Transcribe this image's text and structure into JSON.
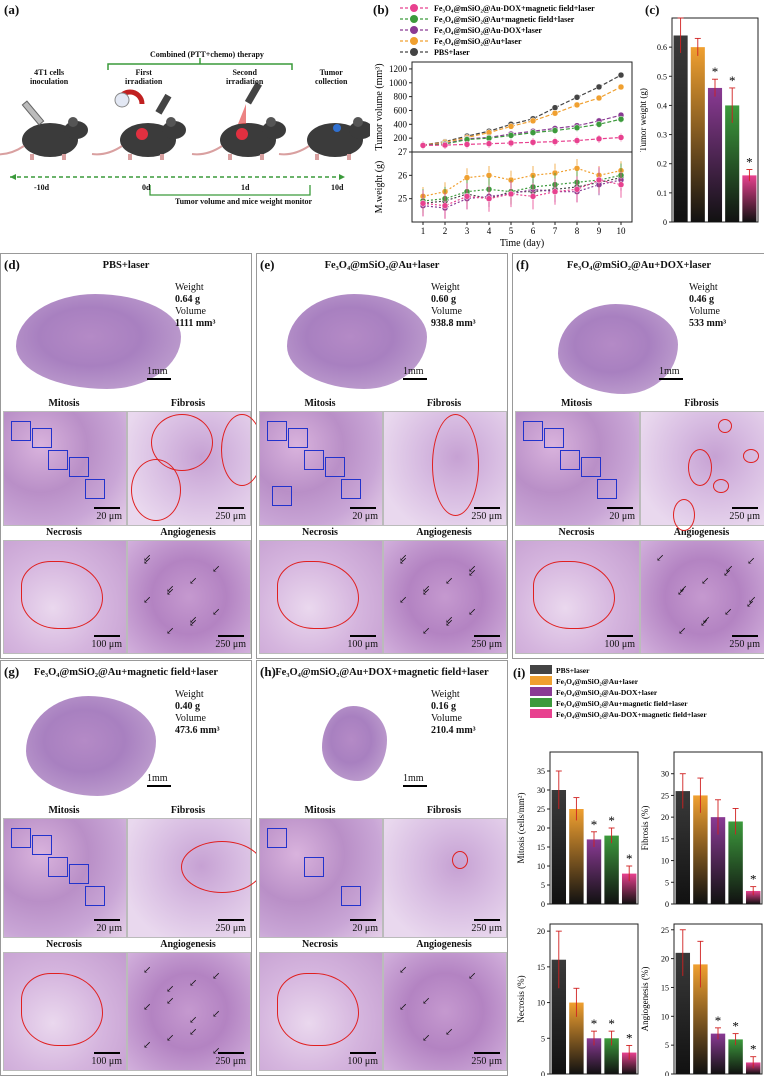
{
  "panel_labels": {
    "a": "(a)",
    "b": "(b)",
    "c": "(c)",
    "d": "(d)",
    "e": "(e)",
    "f": "(f)",
    "g": "(g)",
    "h": "(h)",
    "i": "(i)"
  },
  "schematic": {
    "combined_therapy": "Combined (PTT+chemo) therapy",
    "steps": [
      "4T1 cells\ninoculation",
      "First\nirradiation",
      "Second\nirradiation",
      "Tumor\ncollection"
    ],
    "timeline": [
      "-10d",
      "0d",
      "1d",
      "10d"
    ],
    "monitor": "Tumor volume and mice weight monitor"
  },
  "legend_b": [
    {
      "label": "Fe3O4@mSiO2@Au-DOX+magnetic field+laser",
      "color": "#e8418f"
    },
    {
      "label": "Fe3O4@mSiO2@Au+magnetic field+laser",
      "color": "#3c9a3c"
    },
    {
      "label": "Fe3O4@mSiO2@Au-DOX+laser",
      "color": "#8a3a94"
    },
    {
      "label": "Fe3O4@mSiO2@Au+laser",
      "color": "#f0a030"
    },
    {
      "label": "PBS+laser",
      "color": "#444444"
    }
  ],
  "legend_i": [
    {
      "label": "PBS+laser",
      "color": "#444444"
    },
    {
      "label": "Fe3O4@mSiO2@Au+laser",
      "color": "#f0a030"
    },
    {
      "label": "Fe3O4@mSiO2@Au-DOX+laser",
      "color": "#8a3a94"
    },
    {
      "label": "Fe3O4@mSiO2@Au+magnetic field+laser",
      "color": "#3c9a3c"
    },
    {
      "label": "Fe3O4@mSiO2@Au-DOX+magnetic field+laser",
      "color": "#e8418f"
    }
  ],
  "histology_labels": {
    "mitosis": "Mitosis",
    "fibrosis": "Fibrosis",
    "necrosis": "Necrosis",
    "angiogenesis": "Angiogenesis",
    "mm": "1mm",
    "s20": "20 μm",
    "s250": "250 μm",
    "s100": "100 μm"
  },
  "groups": [
    {
      "title": "PBS+laser",
      "weight": "0.64 g",
      "volume": "1111 mm³"
    },
    {
      "title": "Fe3O4@mSiO2@Au+laser",
      "weight": "0.60 g",
      "volume": "938.8 mm³"
    },
    {
      "title": "Fe3O4@mSiO2@Au+DOX+laser",
      "weight": "0.46 g",
      "volume": "533 mm³"
    },
    {
      "title": "Fe3O4@mSiO2@Au+magnetic field+laser",
      "weight": "0.40 g",
      "volume": "473.6 mm³"
    },
    {
      "title": "Fe3O4@mSiO2@Au+DOX+magnetic field+laser",
      "weight": "0.16 g",
      "volume": "210.4 mm³"
    }
  ],
  "weight_label": "Weight",
  "volume_label": "Volume",
  "chart_data": [
    {
      "type": "line",
      "id": "tumor_volume",
      "ylabel": "Tumor volume (mm³)",
      "xlabel": "Time (day)",
      "x": [
        1,
        2,
        3,
        4,
        5,
        6,
        7,
        8,
        9,
        10
      ],
      "ylim": [
        0,
        1300
      ],
      "yticks": [
        200,
        400,
        600,
        800,
        1000,
        1200
      ],
      "series": [
        {
          "name": "PBS+laser",
          "color": "#444444",
          "values": [
            100,
            150,
            230,
            300,
            400,
            480,
            640,
            790,
            940,
            1111
          ]
        },
        {
          "name": "Fe3O4@mSiO2@Au+laser",
          "color": "#f0a030",
          "values": [
            100,
            140,
            210,
            280,
            370,
            450,
            560,
            680,
            780,
            939
          ]
        },
        {
          "name": "Fe3O4@mSiO2@Au-DOX+laser",
          "color": "#8a3a94",
          "values": [
            100,
            120,
            190,
            210,
            260,
            300,
            340,
            380,
            450,
            533
          ]
        },
        {
          "name": "Fe3O4@mSiO2@Au+magnetic field+laser",
          "color": "#3c9a3c",
          "values": [
            95,
            115,
            180,
            200,
            240,
            280,
            310,
            350,
            400,
            474
          ]
        },
        {
          "name": "Fe3O4@mSiO2@Au-DOX+magnetic field+laser",
          "color": "#e8418f",
          "values": [
            95,
            100,
            110,
            120,
            130,
            140,
            150,
            165,
            190,
            210
          ]
        }
      ]
    },
    {
      "type": "line",
      "id": "mice_weight",
      "ylabel": "M.weight (g)",
      "xlabel": "Time (day)",
      "x": [
        1,
        2,
        3,
        4,
        5,
        6,
        7,
        8,
        9,
        10
      ],
      "ylim": [
        24,
        27
      ],
      "yticks": [
        25,
        26,
        27
      ],
      "series": [
        {
          "name": "PBS+laser",
          "color": "#444444",
          "values": [
            24.8,
            24.9,
            25.2,
            25.0,
            25.3,
            25.3,
            25.4,
            25.5,
            25.7,
            25.9
          ]
        },
        {
          "name": "Fe3O4@mSiO2@Au+laser",
          "color": "#f0a030",
          "values": [
            25.1,
            25.3,
            25.9,
            26.0,
            25.8,
            26.0,
            26.1,
            26.3,
            26.0,
            26.2
          ]
        },
        {
          "name": "Fe3O4@mSiO2@Au-DOX+laser",
          "color": "#8a3a94",
          "values": [
            24.7,
            24.6,
            25.0,
            25.1,
            25.2,
            25.4,
            25.3,
            25.3,
            25.6,
            25.8
          ]
        },
        {
          "name": "Fe3O4@mSiO2@Au+magnetic field+laser",
          "color": "#3c9a3c",
          "values": [
            24.9,
            25.0,
            25.3,
            25.4,
            25.3,
            25.5,
            25.6,
            25.7,
            25.8,
            26.0
          ]
        },
        {
          "name": "Fe3O4@mSiO2@Au-DOX+magnetic field+laser",
          "color": "#e8418f",
          "values": [
            24.8,
            24.7,
            25.1,
            25.0,
            25.2,
            25.1,
            25.3,
            25.4,
            25.8,
            25.6
          ]
        }
      ]
    },
    {
      "type": "bar",
      "id": "tumor_weight",
      "ylabel": "Tumor weight (g)",
      "ylim": [
        0,
        0.7
      ],
      "yticks": [
        0.0,
        0.1,
        0.2,
        0.3,
        0.4,
        0.5,
        0.6
      ],
      "values": [
        0.64,
        0.6,
        0.46,
        0.4,
        0.16
      ],
      "errors": [
        0.06,
        0.03,
        0.03,
        0.06,
        0.02
      ],
      "stars": [
        false,
        false,
        true,
        true,
        true
      ]
    },
    {
      "type": "bar",
      "id": "mitosis",
      "ylabel": "Mitosis (cells/mm²)",
      "ylim": [
        0,
        40
      ],
      "yticks": [
        0,
        5,
        10,
        15,
        20,
        25,
        30,
        35
      ],
      "values": [
        30,
        25,
        17,
        18,
        8
      ],
      "errors": [
        5,
        3,
        2,
        2,
        2
      ],
      "stars": [
        false,
        false,
        true,
        true,
        true
      ]
    },
    {
      "type": "bar",
      "id": "fibrosis",
      "ylabel": "Fibrosis (%)",
      "ylim": [
        0,
        35
      ],
      "yticks": [
        0,
        5,
        10,
        15,
        20,
        25,
        30
      ],
      "values": [
        26,
        25,
        20,
        19,
        3
      ],
      "errors": [
        4,
        4,
        4,
        3,
        1
      ],
      "stars": [
        false,
        false,
        false,
        false,
        true
      ]
    },
    {
      "type": "bar",
      "id": "necrosis",
      "ylabel": "Necrosis (%)",
      "ylim": [
        0,
        21
      ],
      "yticks": [
        0,
        5,
        10,
        15,
        20
      ],
      "values": [
        16,
        10,
        5,
        5,
        3
      ],
      "errors": [
        4,
        2,
        1,
        1,
        1
      ],
      "stars": [
        false,
        false,
        true,
        true,
        true
      ]
    },
    {
      "type": "bar",
      "id": "angiogenesis",
      "ylabel": "Angiogenesis (%)",
      "ylim": [
        0,
        26
      ],
      "yticks": [
        0,
        5,
        10,
        15,
        20,
        25
      ],
      "values": [
        21,
        19,
        7,
        6,
        2
      ],
      "errors": [
        4,
        4,
        1,
        1,
        1
      ],
      "stars": [
        false,
        false,
        true,
        true,
        true
      ]
    }
  ]
}
